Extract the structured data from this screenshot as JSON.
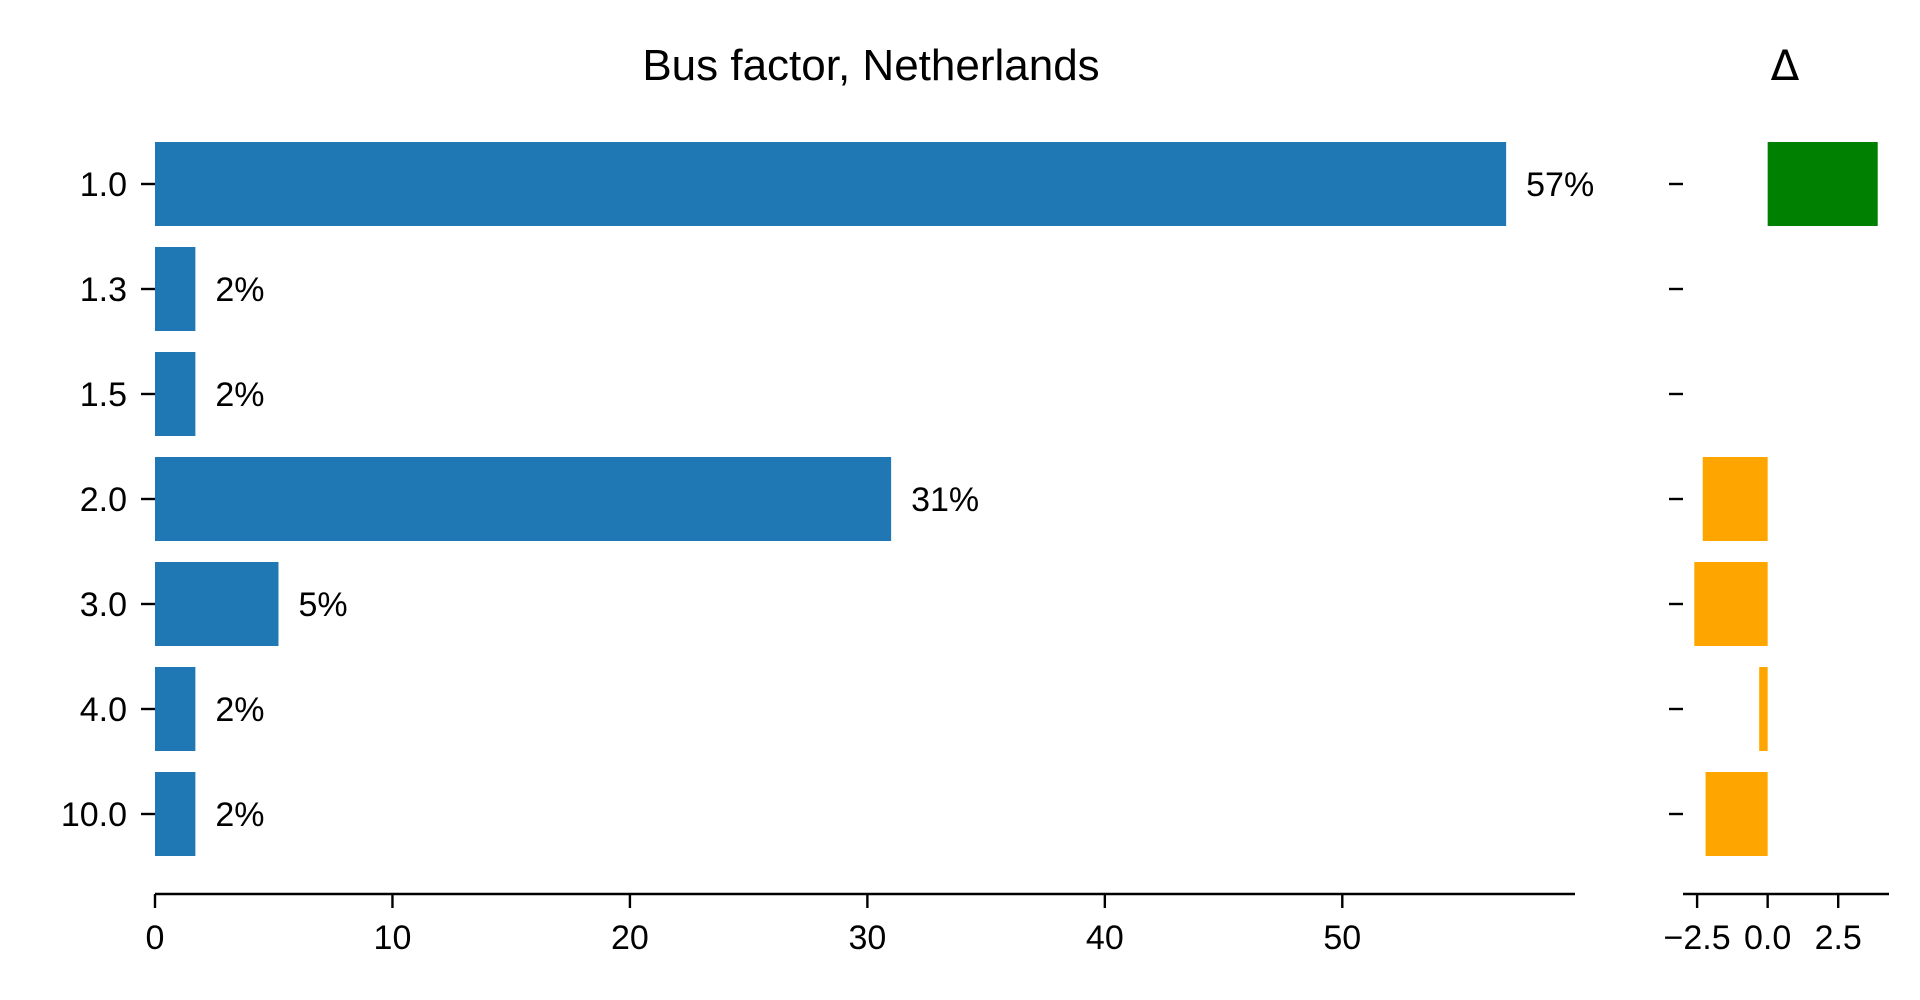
{
  "chart_data": [
    {
      "type": "bar",
      "orientation": "horizontal",
      "title": "Bus factor, Netherlands",
      "categories": [
        "1.0",
        "1.3",
        "1.5",
        "2.0",
        "3.0",
        "4.0",
        "10.0"
      ],
      "values": [
        56.9,
        1.7,
        1.7,
        31.0,
        5.2,
        1.7,
        1.7
      ],
      "data_labels": [
        "57%",
        "2%",
        "2%",
        "31%",
        "5%",
        "2%",
        "2%"
      ],
      "xlim": [
        0,
        59.8
      ],
      "xticks": [
        0,
        10,
        20,
        30,
        40,
        50
      ],
      "xtick_labels": [
        "0",
        "10",
        "20",
        "30",
        "40",
        "50"
      ],
      "bar_color": "#1f77b4",
      "xlabel": "",
      "ylabel": "",
      "grid": false
    },
    {
      "type": "bar",
      "orientation": "horizontal",
      "title": "Δ",
      "categories": [
        "1.0",
        "1.3",
        "1.5",
        "2.0",
        "3.0",
        "4.0",
        "10.0"
      ],
      "values": [
        3.9,
        null,
        null,
        -2.3,
        -2.6,
        -0.3,
        -2.2
      ],
      "xlim": [
        -3.0,
        4.3
      ],
      "xticks": [
        -2.5,
        0.0,
        2.5
      ],
      "xtick_labels": [
        "−2.5",
        "0.0",
        "2.5"
      ],
      "positive_color": "#008000",
      "negative_color": "#ffa500",
      "grid": false
    }
  ]
}
